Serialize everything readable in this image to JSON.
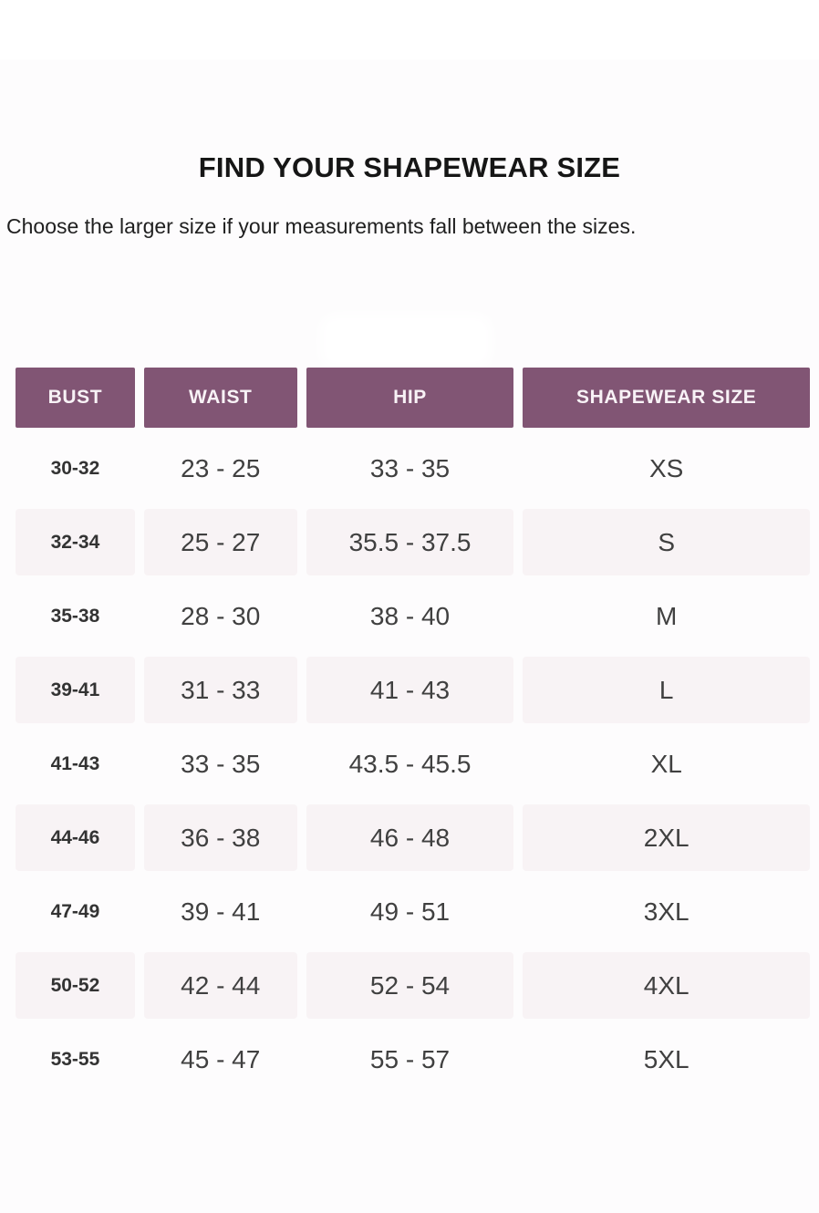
{
  "header": {
    "title": "FIND YOUR SHAPEWEAR SIZE",
    "subtitle": "Choose the larger size if your measurements fall between the sizes."
  },
  "colors": {
    "header_bg": "#815574",
    "header_text": "#f8f2f6",
    "alt_row_bg": "#f8f3f5"
  },
  "size_table": {
    "columns": [
      "BUST",
      "WAIST",
      "HIP",
      "SHAPEWEAR SIZE"
    ],
    "rows": [
      {
        "bust": "30-32",
        "waist": "23 - 25",
        "hip": "33 - 35",
        "shapewear_size": "XS"
      },
      {
        "bust": "32-34",
        "waist": "25 - 27",
        "hip": "35.5 - 37.5",
        "shapewear_size": "S"
      },
      {
        "bust": "35-38",
        "waist": "28 - 30",
        "hip": "38 - 40",
        "shapewear_size": "M"
      },
      {
        "bust": "39-41",
        "waist": "31 - 33",
        "hip": "41 - 43",
        "shapewear_size": "L"
      },
      {
        "bust": "41-43",
        "waist": "33 - 35",
        "hip": "43.5 - 45.5",
        "shapewear_size": "XL"
      },
      {
        "bust": "44-46",
        "waist": "36 - 38",
        "hip": "46 - 48",
        "shapewear_size": "2XL"
      },
      {
        "bust": "47-49",
        "waist": "39 - 41",
        "hip": "49 - 51",
        "shapewear_size": "3XL"
      },
      {
        "bust": "50-52",
        "waist": "42 - 44",
        "hip": "52 - 54",
        "shapewear_size": "4XL"
      },
      {
        "bust": "53-55",
        "waist": "45 - 47",
        "hip": "55 - 57",
        "shapewear_size": "5XL"
      }
    ]
  }
}
